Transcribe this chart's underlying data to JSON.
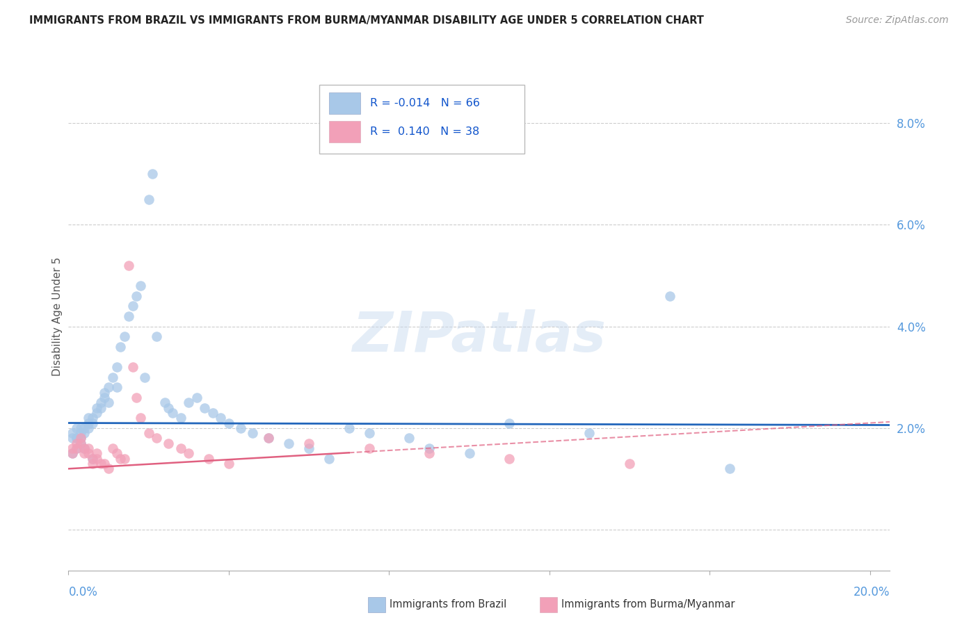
{
  "title": "IMMIGRANTS FROM BRAZIL VS IMMIGRANTS FROM BURMA/MYANMAR DISABILITY AGE UNDER 5 CORRELATION CHART",
  "source": "Source: ZipAtlas.com",
  "ylabel": "Disability Age Under 5",
  "legend_brazil": "Immigrants from Brazil",
  "legend_burma": "Immigrants from Burma/Myanmar",
  "r_brazil": "-0.014",
  "n_brazil": "66",
  "r_burma": "0.140",
  "n_burma": "38",
  "xlim": [
    0.0,
    0.205
  ],
  "ylim": [
    -0.008,
    0.092
  ],
  "color_brazil": "#a8c8e8",
  "color_burma": "#f2a0b8",
  "color_brazil_line": "#2266bb",
  "color_burma_line": "#e06080",
  "color_grid": "#cccccc",
  "color_right_labels": "#5599dd",
  "color_bottom_labels": "#5599dd",
  "brazil_slope": -0.002,
  "brazil_intercept": 0.021,
  "burma_slope": 0.045,
  "burma_intercept": 0.012,
  "brazil_scatter_x": [
    0.001,
    0.001,
    0.001,
    0.002,
    0.002,
    0.002,
    0.003,
    0.003,
    0.003,
    0.004,
    0.004,
    0.005,
    0.005,
    0.005,
    0.006,
    0.006,
    0.007,
    0.007,
    0.008,
    0.008,
    0.009,
    0.009,
    0.01,
    0.01,
    0.011,
    0.012,
    0.012,
    0.013,
    0.014,
    0.015,
    0.016,
    0.017,
    0.018,
    0.019,
    0.02,
    0.021,
    0.022,
    0.024,
    0.025,
    0.026,
    0.028,
    0.03,
    0.032,
    0.034,
    0.036,
    0.038,
    0.04,
    0.043,
    0.046,
    0.05,
    0.055,
    0.06,
    0.065,
    0.07,
    0.075,
    0.085,
    0.09,
    0.1,
    0.11,
    0.13,
    0.15,
    0.165,
    0.002,
    0.003,
    0.004,
    0.006
  ],
  "brazil_scatter_y": [
    0.018,
    0.019,
    0.015,
    0.02,
    0.018,
    0.016,
    0.02,
    0.019,
    0.018,
    0.02,
    0.019,
    0.022,
    0.021,
    0.02,
    0.022,
    0.021,
    0.024,
    0.023,
    0.025,
    0.024,
    0.027,
    0.026,
    0.028,
    0.025,
    0.03,
    0.032,
    0.028,
    0.036,
    0.038,
    0.042,
    0.044,
    0.046,
    0.048,
    0.03,
    0.065,
    0.07,
    0.038,
    0.025,
    0.024,
    0.023,
    0.022,
    0.025,
    0.026,
    0.024,
    0.023,
    0.022,
    0.021,
    0.02,
    0.019,
    0.018,
    0.017,
    0.016,
    0.014,
    0.02,
    0.019,
    0.018,
    0.016,
    0.015,
    0.021,
    0.019,
    0.046,
    0.012,
    0.018,
    0.017,
    0.016,
    0.014
  ],
  "burma_scatter_x": [
    0.001,
    0.001,
    0.002,
    0.002,
    0.003,
    0.003,
    0.004,
    0.004,
    0.005,
    0.005,
    0.006,
    0.006,
    0.007,
    0.007,
    0.008,
    0.009,
    0.01,
    0.011,
    0.012,
    0.013,
    0.014,
    0.015,
    0.016,
    0.017,
    0.018,
    0.02,
    0.022,
    0.025,
    0.028,
    0.03,
    0.035,
    0.04,
    0.05,
    0.06,
    0.075,
    0.09,
    0.11,
    0.14
  ],
  "burma_scatter_y": [
    0.016,
    0.015,
    0.017,
    0.016,
    0.018,
    0.017,
    0.016,
    0.015,
    0.016,
    0.015,
    0.014,
    0.013,
    0.015,
    0.014,
    0.013,
    0.013,
    0.012,
    0.016,
    0.015,
    0.014,
    0.014,
    0.052,
    0.032,
    0.026,
    0.022,
    0.019,
    0.018,
    0.017,
    0.016,
    0.015,
    0.014,
    0.013,
    0.018,
    0.017,
    0.016,
    0.015,
    0.014,
    0.013
  ]
}
